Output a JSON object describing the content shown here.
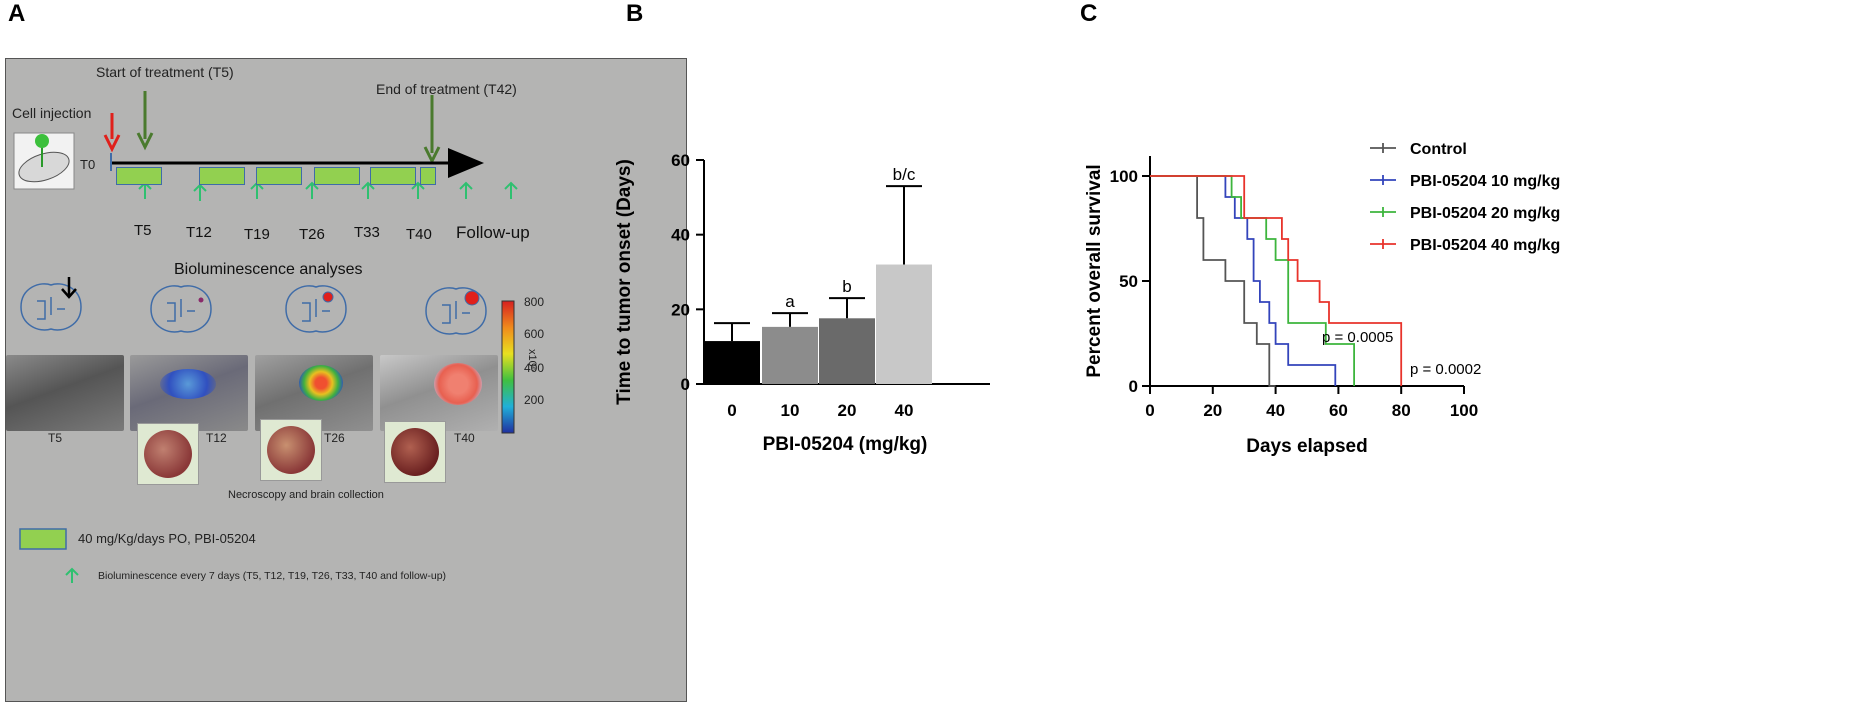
{
  "panel_letters": {
    "a": "A",
    "b": "B",
    "c": "C"
  },
  "panel_a": {
    "cell_injection": "Cell injection",
    "t0": "T0",
    "start_treatment": "Start of treatment  (T5)",
    "end_treatment": "End of treatment  (T42)",
    "timepoints": [
      "T5",
      "T12",
      "T19",
      "T26",
      "T33",
      "T40"
    ],
    "follow_up": "Follow-up",
    "biolum_title": "Bioluminescence analyses",
    "image_labels": [
      "T5",
      "T12",
      "T26",
      "T40"
    ],
    "colorbar_ticks": [
      "800",
      "600",
      "400",
      "200"
    ],
    "colorbar_unit": "x10⁶",
    "necroscopy": "Necroscopy and brain collection",
    "legend_treatment": "40 mg/Kg/days PO, PBI-05204",
    "legend_biolum": "Bioluminescence every 7 days (T5, T12, T19, T26, T33, T40 and follow-up)",
    "colors": {
      "treatment_fill": "#92d050",
      "treatment_border": "#3f6ca8",
      "green_arrow": "#4a7a2e",
      "red_arrow": "#e0201b",
      "follow_arrow": "#2fc070",
      "panel_bg": "#b4b4b3"
    }
  },
  "chart_data": [
    {
      "type": "bar",
      "panel": "B",
      "title": "",
      "xlabel": "PBI-05204 (mg/kg)",
      "ylabel": "Time to tumor onset (Days)",
      "categories": [
        "0",
        "10",
        "20",
        "40"
      ],
      "values": [
        11.5,
        15.3,
        17.6,
        32
      ],
      "error_upper": [
        16.3,
        19,
        23,
        53
      ],
      "annotations": [
        "",
        "a",
        "b",
        "b/c"
      ],
      "colors": [
        "#000000",
        "#8c8c8c",
        "#6a6a6a",
        "#c8c8c8"
      ],
      "ylim": [
        0,
        60
      ],
      "yticks": [
        0,
        20,
        40,
        60
      ],
      "yticklabels": [
        "0",
        "20",
        "40",
        "60"
      ]
    },
    {
      "type": "line",
      "panel": "C",
      "title": "",
      "xlabel": "Days elapsed",
      "ylabel": "Percent overall survival",
      "xlim": [
        0,
        100
      ],
      "ylim": [
        0,
        100
      ],
      "xticks": [
        0,
        20,
        40,
        60,
        80,
        100
      ],
      "xticklabels": [
        "0",
        "20",
        "40",
        "60",
        "80",
        "100"
      ],
      "yticks": [
        0,
        50,
        100
      ],
      "yticklabels": [
        "0",
        "50",
        "100"
      ],
      "legend_position": "top-right",
      "series": [
        {
          "name": "Control",
          "color": "#555555",
          "steps": [
            [
              0,
              100
            ],
            [
              15,
              100
            ],
            [
              15,
              80
            ],
            [
              17,
              80
            ],
            [
              17,
              60
            ],
            [
              20,
              60
            ],
            [
              20,
              60
            ],
            [
              24,
              60
            ],
            [
              24,
              50
            ],
            [
              30,
              50
            ],
            [
              30,
              30
            ],
            [
              34,
              30
            ],
            [
              34,
              20
            ],
            [
              38,
              20
            ],
            [
              38,
              0
            ],
            [
              40,
              0
            ]
          ]
        },
        {
          "name": "PBI-05204 10 mg/kg",
          "color": "#3344bb",
          "steps": [
            [
              0,
              100
            ],
            [
              24,
              100
            ],
            [
              24,
              90
            ],
            [
              27,
              90
            ],
            [
              27,
              80
            ],
            [
              31,
              80
            ],
            [
              31,
              70
            ],
            [
              33,
              70
            ],
            [
              33,
              50
            ],
            [
              35,
              50
            ],
            [
              35,
              40
            ],
            [
              38,
              40
            ],
            [
              38,
              30
            ],
            [
              40,
              30
            ],
            [
              40,
              20
            ],
            [
              44,
              20
            ],
            [
              44,
              10
            ],
            [
              59,
              10
            ],
            [
              59,
              0
            ]
          ]
        },
        {
          "name": "PBI-05204 20 mg/kg",
          "color": "#3db53d",
          "steps": [
            [
              0,
              100
            ],
            [
              26,
              100
            ],
            [
              26,
              90
            ],
            [
              29,
              90
            ],
            [
              29,
              80
            ],
            [
              37,
              80
            ],
            [
              37,
              70
            ],
            [
              40,
              70
            ],
            [
              40,
              60
            ],
            [
              44,
              60
            ],
            [
              44,
              30
            ],
            [
              56,
              30
            ],
            [
              56,
              20
            ],
            [
              65,
              20
            ],
            [
              65,
              0
            ]
          ]
        },
        {
          "name": "PBI-05204 40 mg/kg",
          "color": "#e8332b",
          "steps": [
            [
              0,
              100
            ],
            [
              30,
              100
            ],
            [
              30,
              80
            ],
            [
              42,
              80
            ],
            [
              42,
              70
            ],
            [
              44,
              70
            ],
            [
              44,
              60
            ],
            [
              47,
              60
            ],
            [
              47,
              50
            ],
            [
              54,
              50
            ],
            [
              54,
              40
            ],
            [
              57,
              40
            ],
            [
              57,
              30
            ],
            [
              80,
              30
            ],
            [
              80,
              0
            ]
          ]
        }
      ],
      "annotations": [
        "p = 0.0005",
        "p = 0.0002"
      ]
    }
  ]
}
